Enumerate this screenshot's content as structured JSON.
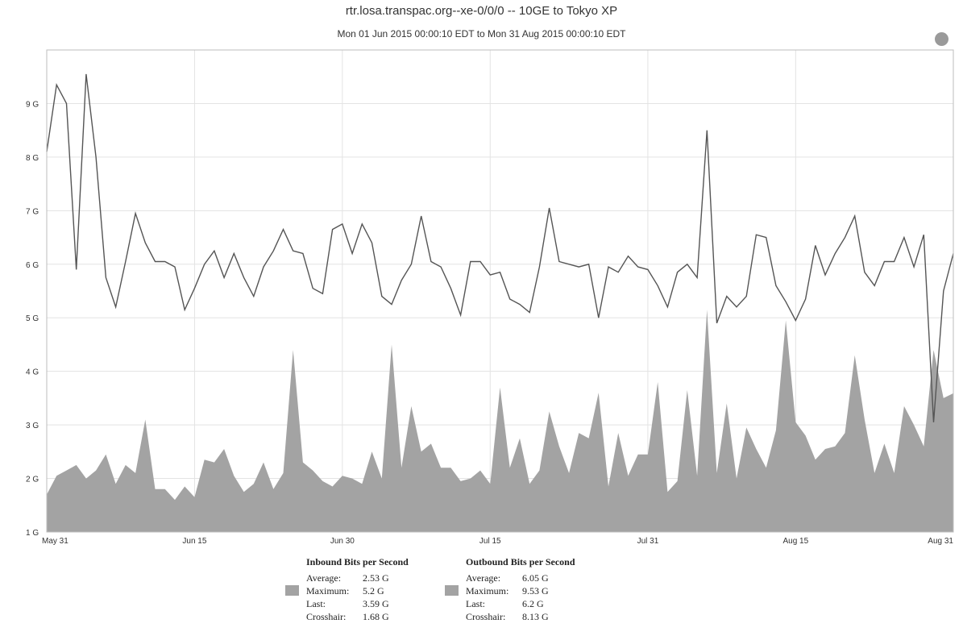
{
  "title": "rtr.losa.transpac.org--xe-0/0/0 -- 10GE to Tokyo XP",
  "subtitle": "Mon 01 Jun 2015 00:00:10 EDT  to  Mon 31 Aug 2015 00:00:10 EDT",
  "chart_data": {
    "type": "area",
    "title": "rtr.losa.transpac.org--xe-0/0/0 -- 10GE to Tokyo XP",
    "subtitle": "Mon 01 Jun 2015 00:00:10 EDT  to  Mon 31 Aug 2015 00:00:10 EDT",
    "xlabel": "",
    "ylabel": "",
    "ylim": [
      1,
      10
    ],
    "grid": true,
    "y_ticks": [
      "1 G",
      "2 G",
      "3 G",
      "4 G",
      "5 G",
      "6 G",
      "7 G",
      "8 G",
      "9 G"
    ],
    "x_ticks": [
      "May 31",
      "Jun 15",
      "Jun 30",
      "Jul 15",
      "Jul 31",
      "Aug 15",
      "Aug 31"
    ],
    "x_range": [
      "2015-05-31",
      "2015-08-31"
    ],
    "series": [
      {
        "name": "Inbound Bits per Second",
        "type": "area",
        "color": "#a3a3a3",
        "x": [
          "2015-05-31",
          "2015-06-01",
          "2015-06-02",
          "2015-06-03",
          "2015-06-04",
          "2015-06-05",
          "2015-06-06",
          "2015-06-07",
          "2015-06-08",
          "2015-06-09",
          "2015-06-10",
          "2015-06-11",
          "2015-06-12",
          "2015-06-13",
          "2015-06-14",
          "2015-06-15",
          "2015-06-16",
          "2015-06-17",
          "2015-06-18",
          "2015-06-19",
          "2015-06-20",
          "2015-06-21",
          "2015-06-22",
          "2015-06-23",
          "2015-06-24",
          "2015-06-25",
          "2015-06-26",
          "2015-06-27",
          "2015-06-28",
          "2015-06-29",
          "2015-06-30",
          "2015-07-01",
          "2015-07-02",
          "2015-07-03",
          "2015-07-04",
          "2015-07-05",
          "2015-07-06",
          "2015-07-07",
          "2015-07-08",
          "2015-07-09",
          "2015-07-10",
          "2015-07-11",
          "2015-07-12",
          "2015-07-13",
          "2015-07-14",
          "2015-07-15",
          "2015-07-16",
          "2015-07-17",
          "2015-07-18",
          "2015-07-19",
          "2015-07-20",
          "2015-07-21",
          "2015-07-22",
          "2015-07-23",
          "2015-07-24",
          "2015-07-25",
          "2015-07-26",
          "2015-07-27",
          "2015-07-28",
          "2015-07-29",
          "2015-07-30",
          "2015-07-31",
          "2015-08-01",
          "2015-08-02",
          "2015-08-03",
          "2015-08-04",
          "2015-08-05",
          "2015-08-06",
          "2015-08-07",
          "2015-08-08",
          "2015-08-09",
          "2015-08-10",
          "2015-08-11",
          "2015-08-12",
          "2015-08-13",
          "2015-08-14",
          "2015-08-15",
          "2015-08-16",
          "2015-08-17",
          "2015-08-18",
          "2015-08-19",
          "2015-08-20",
          "2015-08-21",
          "2015-08-22",
          "2015-08-23",
          "2015-08-24",
          "2015-08-25",
          "2015-08-26",
          "2015-08-27",
          "2015-08-28",
          "2015-08-29",
          "2015-08-30",
          "2015-08-31"
        ],
        "values": [
          1.7,
          2.05,
          2.15,
          2.25,
          2.0,
          2.15,
          2.45,
          1.9,
          2.25,
          2.1,
          3.1,
          1.8,
          1.8,
          1.6,
          1.85,
          1.65,
          2.35,
          2.3,
          2.55,
          2.05,
          1.75,
          1.9,
          2.3,
          1.8,
          2.1,
          4.4,
          2.3,
          2.15,
          1.95,
          1.85,
          2.05,
          2.0,
          1.9,
          2.5,
          2.0,
          4.5,
          2.2,
          3.35,
          2.5,
          2.65,
          2.2,
          2.2,
          1.95,
          2.0,
          2.15,
          1.9,
          3.7,
          2.2,
          2.75,
          1.9,
          2.15,
          3.25,
          2.6,
          2.1,
          2.85,
          2.75,
          3.6,
          1.85,
          2.85,
          2.05,
          2.45,
          2.45,
          3.8,
          1.75,
          1.95,
          3.65,
          2.05,
          5.15,
          2.1,
          3.4,
          2.0,
          2.95,
          2.55,
          2.2,
          2.9,
          4.95,
          3.05,
          2.8,
          2.35,
          2.55,
          2.6,
          2.85,
          4.3,
          3.1,
          2.1,
          2.65,
          2.1,
          3.35,
          3.0,
          2.6,
          4.4,
          3.5,
          3.59
        ]
      },
      {
        "name": "Outbound Bits per Second",
        "type": "line",
        "color": "#555555",
        "x": [
          "2015-05-31",
          "2015-06-01",
          "2015-06-02",
          "2015-06-03",
          "2015-06-04",
          "2015-06-05",
          "2015-06-06",
          "2015-06-07",
          "2015-06-08",
          "2015-06-09",
          "2015-06-10",
          "2015-06-11",
          "2015-06-12",
          "2015-06-13",
          "2015-06-14",
          "2015-06-15",
          "2015-06-16",
          "2015-06-17",
          "2015-06-18",
          "2015-06-19",
          "2015-06-20",
          "2015-06-21",
          "2015-06-22",
          "2015-06-23",
          "2015-06-24",
          "2015-06-25",
          "2015-06-26",
          "2015-06-27",
          "2015-06-28",
          "2015-06-29",
          "2015-06-30",
          "2015-07-01",
          "2015-07-02",
          "2015-07-03",
          "2015-07-04",
          "2015-07-05",
          "2015-07-06",
          "2015-07-07",
          "2015-07-08",
          "2015-07-09",
          "2015-07-10",
          "2015-07-11",
          "2015-07-12",
          "2015-07-13",
          "2015-07-14",
          "2015-07-15",
          "2015-07-16",
          "2015-07-17",
          "2015-07-18",
          "2015-07-19",
          "2015-07-20",
          "2015-07-21",
          "2015-07-22",
          "2015-07-23",
          "2015-07-24",
          "2015-07-25",
          "2015-07-26",
          "2015-07-27",
          "2015-07-28",
          "2015-07-29",
          "2015-07-30",
          "2015-07-31",
          "2015-08-01",
          "2015-08-02",
          "2015-08-03",
          "2015-08-04",
          "2015-08-05",
          "2015-08-06",
          "2015-08-07",
          "2015-08-08",
          "2015-08-09",
          "2015-08-10",
          "2015-08-11",
          "2015-08-12",
          "2015-08-13",
          "2015-08-14",
          "2015-08-15",
          "2015-08-16",
          "2015-08-17",
          "2015-08-18",
          "2015-08-19",
          "2015-08-20",
          "2015-08-21",
          "2015-08-22",
          "2015-08-23",
          "2015-08-24",
          "2015-08-25",
          "2015-08-26",
          "2015-08-27",
          "2015-08-28",
          "2015-08-29",
          "2015-08-30",
          "2015-08-31"
        ],
        "values": [
          8.1,
          9.35,
          9.0,
          5.9,
          9.55,
          8.0,
          5.75,
          5.2,
          6.05,
          6.95,
          6.4,
          6.05,
          6.05,
          5.95,
          5.15,
          5.55,
          6.0,
          6.25,
          5.75,
          6.2,
          5.75,
          5.4,
          5.95,
          6.25,
          6.65,
          6.25,
          6.2,
          5.55,
          5.45,
          6.65,
          6.75,
          6.2,
          6.75,
          6.4,
          5.4,
          5.25,
          5.7,
          6.0,
          6.9,
          6.05,
          5.95,
          5.55,
          5.05,
          6.05,
          6.05,
          5.8,
          5.85,
          5.35,
          5.25,
          5.1,
          5.95,
          7.05,
          6.05,
          6.0,
          5.95,
          6.0,
          5.0,
          5.95,
          5.85,
          6.15,
          5.95,
          5.9,
          5.6,
          5.2,
          5.85,
          6.0,
          5.75,
          8.5,
          4.9,
          5.4,
          5.2,
          5.4,
          6.55,
          6.5,
          5.6,
          5.3,
          4.95,
          5.35,
          6.35,
          5.8,
          6.2,
          6.5,
          6.9,
          5.85,
          5.6,
          6.05,
          6.05,
          6.5,
          5.95,
          6.55,
          3.05,
          5.5,
          6.2
        ]
      }
    ]
  },
  "legend": {
    "inbound": {
      "heading": "Inbound Bits per Second",
      "rows": [
        {
          "label": "Average:",
          "value": "2.53 G"
        },
        {
          "label": "Maximum:",
          "value": "5.2 G"
        },
        {
          "label": "Last:",
          "value": "3.59 G"
        },
        {
          "label": "Crosshair:",
          "value": "1.68 G"
        }
      ],
      "color": "#a3a3a3"
    },
    "outbound": {
      "heading": "Outbound Bits per Second",
      "rows": [
        {
          "label": "Average:",
          "value": "6.05 G"
        },
        {
          "label": "Maximum:",
          "value": "9.53 G"
        },
        {
          "label": "Last:",
          "value": "6.2 G"
        },
        {
          "label": "Crosshair:",
          "value": "8.13 G"
        }
      ],
      "color": "#a3a3a3"
    }
  },
  "status_indicator_color": "#9a9a9a"
}
